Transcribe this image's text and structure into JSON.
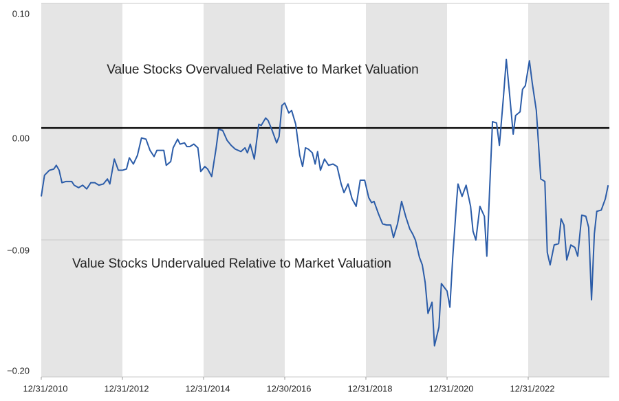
{
  "chart_data": {
    "type": "line",
    "x": [
      2011.0,
      2011.08,
      2011.2,
      2011.31,
      2011.37,
      2011.44,
      2011.51,
      2011.61,
      2011.75,
      2011.81,
      2011.92,
      2012.02,
      2012.12,
      2012.22,
      2012.32,
      2012.42,
      2012.53,
      2012.63,
      2012.69,
      2012.8,
      2012.9,
      2013.0,
      2013.1,
      2013.17,
      2013.27,
      2013.37,
      2013.47,
      2013.58,
      2013.68,
      2013.78,
      2013.85,
      2013.95,
      2014.02,
      2014.08,
      2014.19,
      2014.25,
      2014.36,
      2014.42,
      2014.53,
      2014.59,
      2014.66,
      2014.76,
      2014.86,
      2014.93,
      2015.03,
      2015.1,
      2015.2,
      2015.31,
      2015.37,
      2015.47,
      2015.58,
      2015.68,
      2015.78,
      2015.85,
      2015.92,
      2016.02,
      2016.08,
      2016.15,
      2016.25,
      2016.36,
      2016.42,
      2016.53,
      2016.59,
      2016.69,
      2016.8,
      2016.86,
      2016.93,
      2017.0,
      2017.1,
      2017.17,
      2017.27,
      2017.37,
      2017.44,
      2017.51,
      2017.58,
      2017.68,
      2017.75,
      2017.81,
      2017.88,
      2017.98,
      2018.08,
      2018.19,
      2018.29,
      2018.39,
      2018.46,
      2018.56,
      2018.66,
      2018.76,
      2018.86,
      2018.97,
      2019.07,
      2019.14,
      2019.2,
      2019.31,
      2019.41,
      2019.51,
      2019.61,
      2019.68,
      2019.78,
      2019.88,
      2019.98,
      2020.08,
      2020.15,
      2020.22,
      2020.32,
      2020.39,
      2020.46,
      2020.53,
      2020.63,
      2020.69,
      2020.8,
      2020.86,
      2021.0,
      2021.07,
      2021.14,
      2021.24,
      2021.27,
      2021.37,
      2021.47,
      2021.58,
      2021.64,
      2021.71,
      2021.81,
      2021.92,
      2021.98,
      2022.05,
      2022.12,
      2022.22,
      2022.29,
      2022.39,
      2022.46,
      2022.53,
      2022.63,
      2022.69,
      2022.8,
      2022.86,
      2022.93,
      2023.03,
      2023.1,
      2023.2,
      2023.31,
      2023.41,
      2023.47,
      2023.54,
      2023.64,
      2023.75,
      2023.81,
      2023.88,
      2023.95,
      2024.05,
      2024.15,
      2024.22,
      2024.32,
      2024.42,
      2024.49,
      2024.56,
      2024.63,
      2024.69,
      2024.8,
      2024.9,
      2024.97
    ],
    "series": [
      {
        "color": "#2b5ca8",
        "values": [
          -0.055,
          -0.038,
          -0.034,
          -0.033,
          -0.03,
          -0.034,
          -0.044,
          -0.043,
          -0.043,
          -0.046,
          -0.048,
          -0.046,
          -0.049,
          -0.044,
          -0.044,
          -0.046,
          -0.045,
          -0.041,
          -0.045,
          -0.025,
          -0.034,
          -0.034,
          -0.033,
          -0.024,
          -0.029,
          -0.022,
          -0.008,
          -0.009,
          -0.018,
          -0.023,
          -0.018,
          -0.018,
          -0.018,
          -0.03,
          -0.027,
          -0.016,
          -0.009,
          -0.013,
          -0.012,
          -0.015,
          -0.015,
          -0.013,
          -0.016,
          -0.035,
          -0.031,
          -0.033,
          -0.039,
          -0.016,
          -0.001,
          -0.002,
          -0.01,
          -0.014,
          -0.017,
          -0.018,
          -0.019,
          -0.016,
          -0.02,
          -0.013,
          -0.025,
          0.003,
          0.002,
          0.008,
          0.006,
          -0.002,
          -0.012,
          -0.007,
          0.018,
          0.02,
          0.012,
          0.014,
          0.003,
          -0.022,
          -0.031,
          -0.016,
          -0.017,
          -0.02,
          -0.029,
          -0.019,
          -0.034,
          -0.025,
          -0.03,
          -0.029,
          -0.031,
          -0.045,
          -0.052,
          -0.045,
          -0.057,
          -0.063,
          -0.042,
          -0.042,
          -0.056,
          -0.06,
          -0.059,
          -0.069,
          -0.077,
          -0.078,
          -0.078,
          -0.088,
          -0.077,
          -0.059,
          -0.071,
          -0.081,
          -0.085,
          -0.09,
          -0.104,
          -0.11,
          -0.124,
          -0.149,
          -0.14,
          -0.175,
          -0.16,
          -0.125,
          -0.131,
          -0.144,
          -0.104,
          -0.057,
          -0.045,
          -0.055,
          -0.046,
          -0.063,
          -0.083,
          -0.09,
          -0.063,
          -0.071,
          -0.103,
          -0.049,
          0.005,
          0.004,
          -0.014,
          0.025,
          0.055,
          0.031,
          -0.005,
          0.01,
          0.013,
          0.031,
          0.034,
          0.054,
          0.036,
          0.014,
          -0.041,
          -0.043,
          -0.1,
          -0.11,
          -0.094,
          -0.093,
          -0.073,
          -0.078,
          -0.106,
          -0.094,
          -0.096,
          -0.103,
          -0.07,
          -0.071,
          -0.08,
          -0.138,
          -0.085,
          -0.067,
          -0.066,
          -0.057,
          -0.046
        ]
      }
    ],
    "xlim": [
      2011,
      2025
    ],
    "xticks": [
      {
        "value": 2011,
        "label": "12/31/2010"
      },
      {
        "value": 2013,
        "label": "12/31/2012"
      },
      {
        "value": 2015,
        "label": "12/31/2014"
      },
      {
        "value": 2017,
        "label": "12/30/2016"
      },
      {
        "value": 2019,
        "label": "12/31/2018"
      },
      {
        "value": 2021,
        "label": "12/31/2020"
      },
      {
        "value": 2023,
        "label": "12/31/2022"
      }
    ],
    "ylim": [
      -0.2,
      0.1
    ],
    "yticks": [
      {
        "value": 0.1,
        "label": "0.10"
      },
      {
        "value": 0,
        "label": "0.00"
      },
      {
        "value": -0.09,
        "label": "−0.09"
      },
      {
        "value": -0.2,
        "label": "−0.20"
      }
    ],
    "grid": true,
    "reference_line": 0,
    "annotations": [
      {
        "text": "Value Stocks Overvalued Relative to Market Valuation",
        "color": "#e8262a"
      },
      {
        "text": "Value Stocks Undervalued Relative to Market Valuation",
        "color": "#1fa84f"
      }
    ]
  }
}
